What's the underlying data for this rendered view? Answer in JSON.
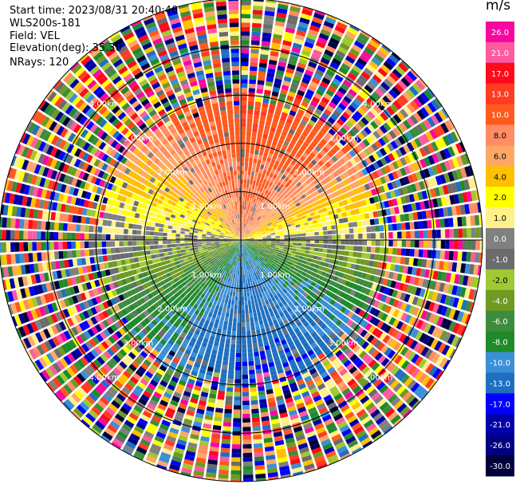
{
  "header": {
    "start_time": "Start time: 2023/08/31 20:40:40",
    "instrument": "WLS200s-181",
    "field": "Field: VEL",
    "elevation": "Elevation(deg): 35.30",
    "nrays": "NRays: 120"
  },
  "chart_data": {
    "type": "heatmap",
    "projection": "polar-ppi",
    "field": "VEL",
    "units": "m/s",
    "n_rays": 120,
    "max_range_km": 5.0,
    "range_rings_km": [
      1.0,
      2.0,
      3.0,
      4.0,
      5.0
    ],
    "ring_labels": [
      "1.00km",
      "2.00km",
      "3.00km",
      "4.00km"
    ],
    "valid_data_range_km": 2.8,
    "velocity_pattern": {
      "north_half": "positive (+6 to +14 m/s), strongest near north",
      "east_west": "near zero (-1 to +4 m/s)",
      "south_half": "negative (-6 to -10 m/s), strongest toward south-southwest"
    },
    "colorbar": {
      "label": "m/s",
      "ticks": [
        "26.0",
        "21.0",
        "17.0",
        "13.0",
        "10.0",
        "8.0",
        "6.0",
        "4.0",
        "2.0",
        "1.0",
        "0.0",
        "-1.0",
        "-2.0",
        "-4.0",
        "-6.0",
        "-8.0",
        "-10.0",
        "-13.0",
        "-17.0",
        "-21.0",
        "-26.0",
        "-30.0"
      ],
      "colors": [
        "#f7079f",
        "#ff5aa0",
        "#ff0a1a",
        "#ff3b22",
        "#ff5a1e",
        "#ff8c64",
        "#ffa866",
        "#ffc000",
        "#ffff00",
        "#fff08a",
        "#808080",
        "#6b6b6b",
        "#a0c832",
        "#6e9a22",
        "#3d8b3d",
        "#1e8a2a",
        "#3a8fd6",
        "#1e6fc0",
        "#0000ff",
        "#0000aa",
        "#000080",
        "#00003c"
      ]
    }
  }
}
